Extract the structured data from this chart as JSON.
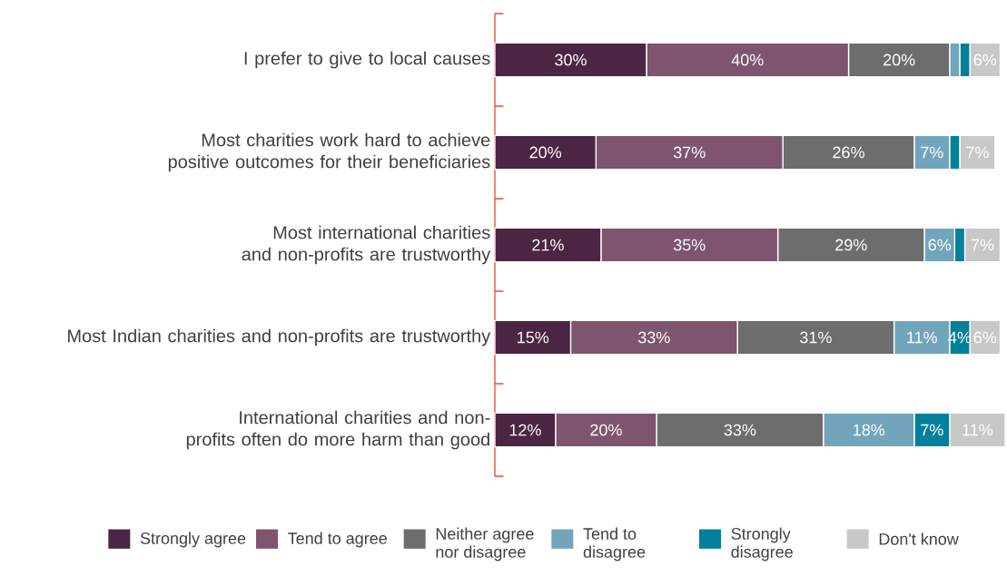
{
  "chart_data": {
    "type": "bar",
    "orientation": "horizontal",
    "stacked": true,
    "categories": [
      "I prefer to give to local causes",
      "Most charities work hard to achieve positive outcomes for their beneficiaries",
      "Most international charities and non-profits are trustworthy",
      "Most Indian charities and non-profits are trustworthy",
      "International charities and non-profits often do more harm than good"
    ],
    "series": [
      {
        "name": "Strongly agree",
        "color": "#4d2544",
        "values": [
          30,
          20,
          21,
          15,
          12
        ],
        "value_labels": [
          "30%",
          "20%",
          "21%",
          "15%",
          "12%"
        ]
      },
      {
        "name": "Tend to agree",
        "color": "#7e546f",
        "values": [
          40,
          37,
          35,
          33,
          20
        ],
        "value_labels": [
          "40%",
          "37%",
          "35%",
          "33%",
          "20%"
        ]
      },
      {
        "name": "Neither agree nor disagree",
        "color": "#6d6d6d",
        "values": [
          20,
          26,
          29,
          31,
          33
        ],
        "value_labels": [
          "20%",
          "26%",
          "29%",
          "31%",
          "33%"
        ]
      },
      {
        "name": "Tend to disagree",
        "color": "#72a5bb",
        "values": [
          2,
          7,
          6,
          11,
          18
        ],
        "value_labels": [
          null,
          "7%",
          "6%",
          "11%",
          "18%"
        ]
      },
      {
        "name": "Strongly disagree",
        "color": "#00809a",
        "values": [
          2,
          2,
          2,
          4,
          7
        ],
        "value_labels": [
          null,
          null,
          null,
          "4%",
          "7%"
        ]
      },
      {
        "name": "Don't know",
        "color": "#c8c8c8",
        "values": [
          6,
          7,
          7,
          6,
          11
        ],
        "value_labels": [
          "6%",
          "7%",
          "7%",
          "6%",
          "11%"
        ]
      }
    ],
    "tick_labels": "y",
    "legend": "bottom"
  }
}
